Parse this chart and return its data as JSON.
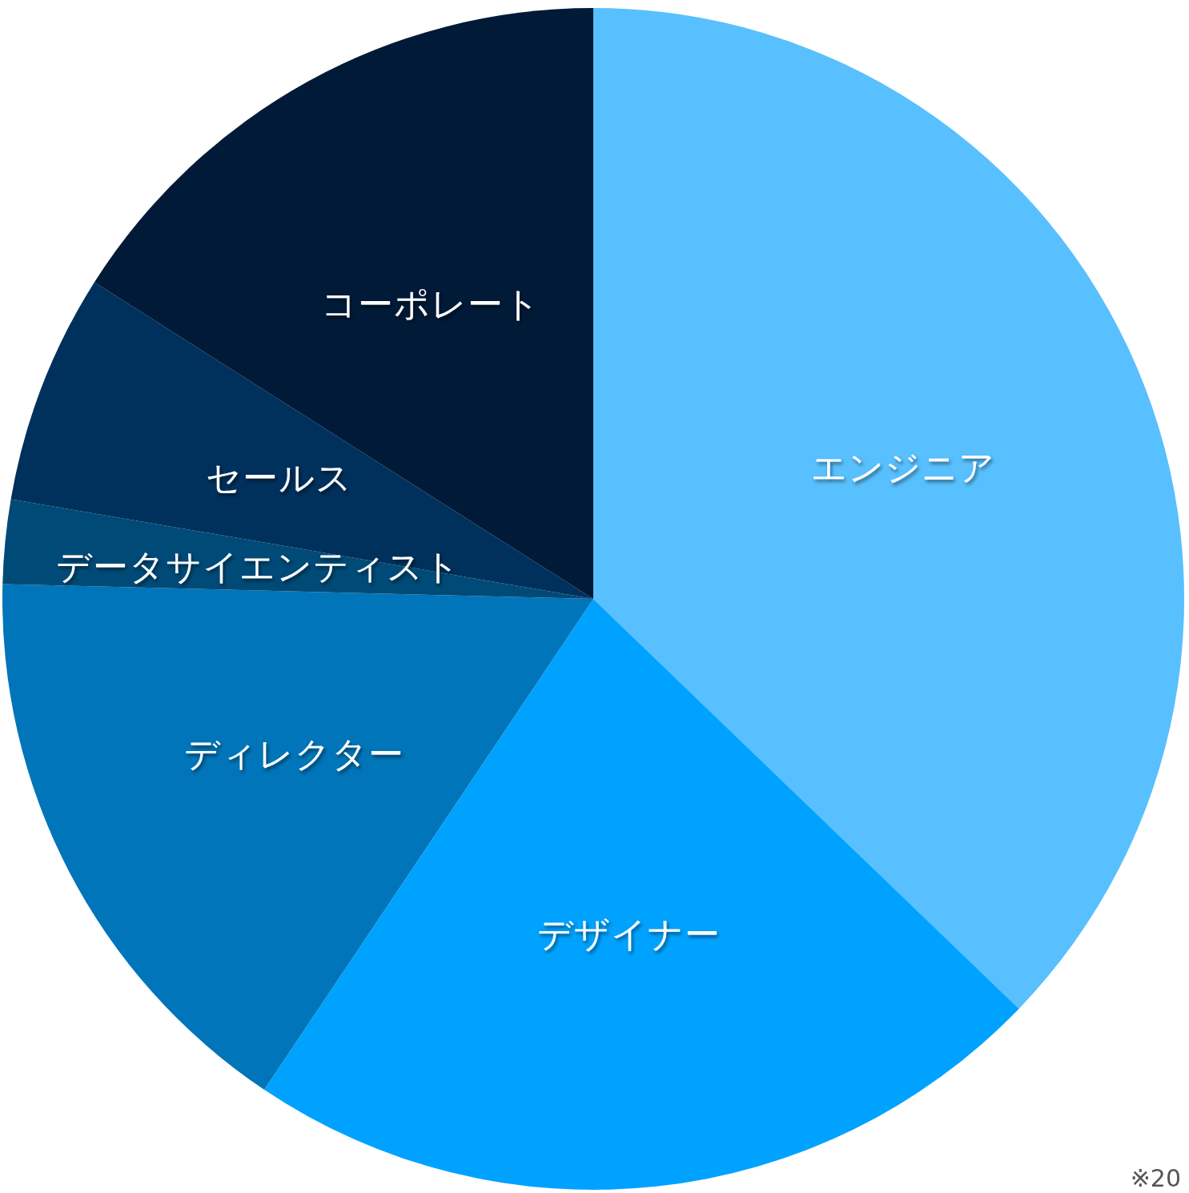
{
  "chart_data": {
    "type": "pie",
    "categories": [
      "エンジニア",
      "デザイナー",
      "ディレクター",
      "データサイエンティスト",
      "セールス",
      "コーポレート"
    ],
    "values": [
      37.2,
      22.2,
      16.0,
      2.3,
      6.3,
      16.0
    ],
    "colors": [
      "#58c0fe",
      "#00a2ff",
      "#0075b9",
      "#004a77",
      "#00305c",
      "#001a38"
    ],
    "annotations": [
      "※20"
    ]
  }
}
